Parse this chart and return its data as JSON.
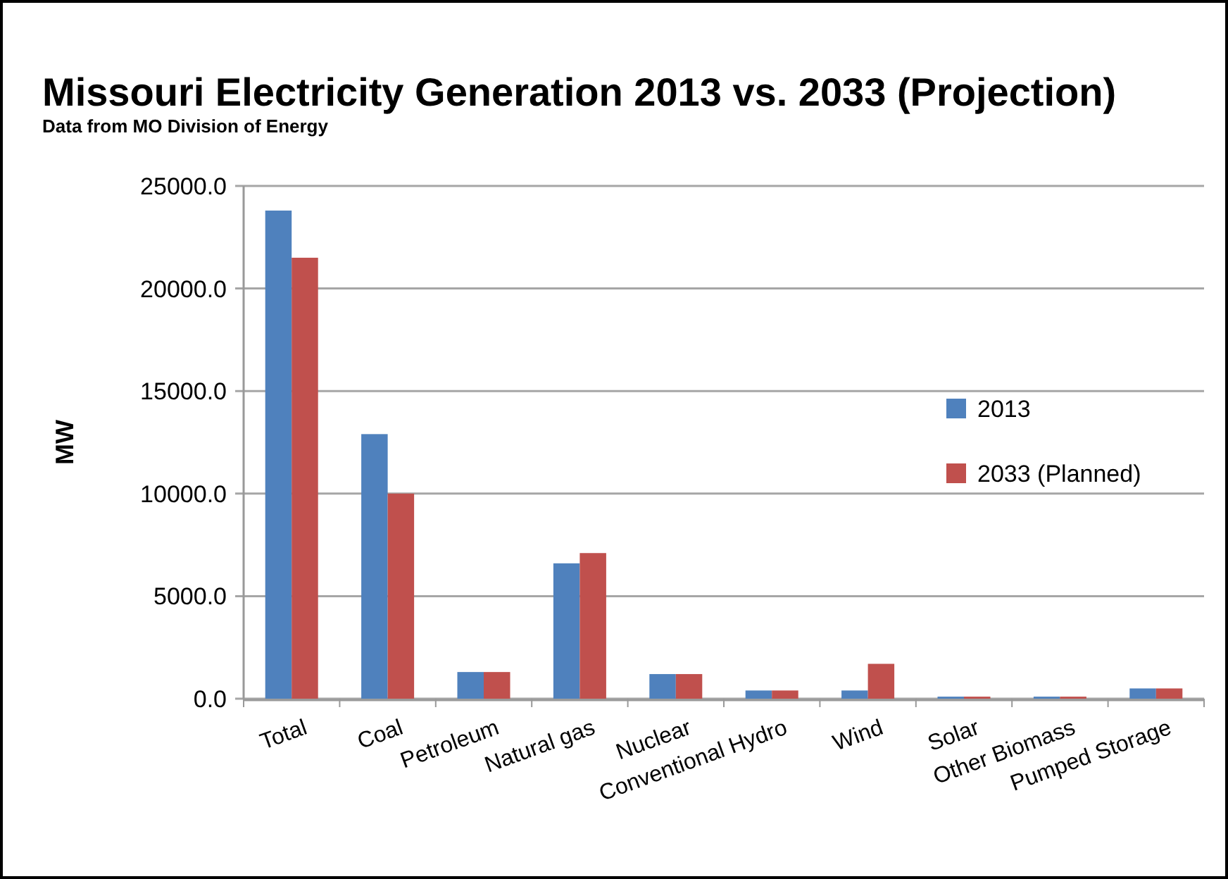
{
  "chart_data": {
    "type": "bar",
    "title": "Missouri Electricity Generation 2013 vs. 2033 (Projection)",
    "subtitle": "Data from MO Division of Energy",
    "ylabel": "MW",
    "categories": [
      "Total",
      "Coal",
      "Petroleum",
      "Natural gas",
      "Nuclear",
      "Conventional Hydro",
      "Wind",
      "Solar",
      "Other Biomass",
      "Pumped Storage"
    ],
    "series": [
      {
        "name": "2013",
        "color": "#4f81bd",
        "values": [
          23800,
          12900,
          1300,
          6600,
          1200,
          400,
          400,
          100,
          100,
          500
        ]
      },
      {
        "name": "2033 (Planned)",
        "color": "#c0504d",
        "values": [
          21500,
          10000,
          1300,
          7100,
          1200,
          400,
          1700,
          100,
          100,
          500
        ]
      }
    ],
    "ylim": [
      0,
      25000
    ],
    "yticks": [
      {
        "value": 0,
        "label": "0.0"
      },
      {
        "value": 5000,
        "label": "5000.0"
      },
      {
        "value": 10000,
        "label": "10000.0"
      },
      {
        "value": 15000,
        "label": "15000.0"
      },
      {
        "value": 20000,
        "label": "20000.0"
      },
      {
        "value": 25000,
        "label": "25000.0"
      }
    ],
    "grid": "y",
    "legend": "right"
  }
}
